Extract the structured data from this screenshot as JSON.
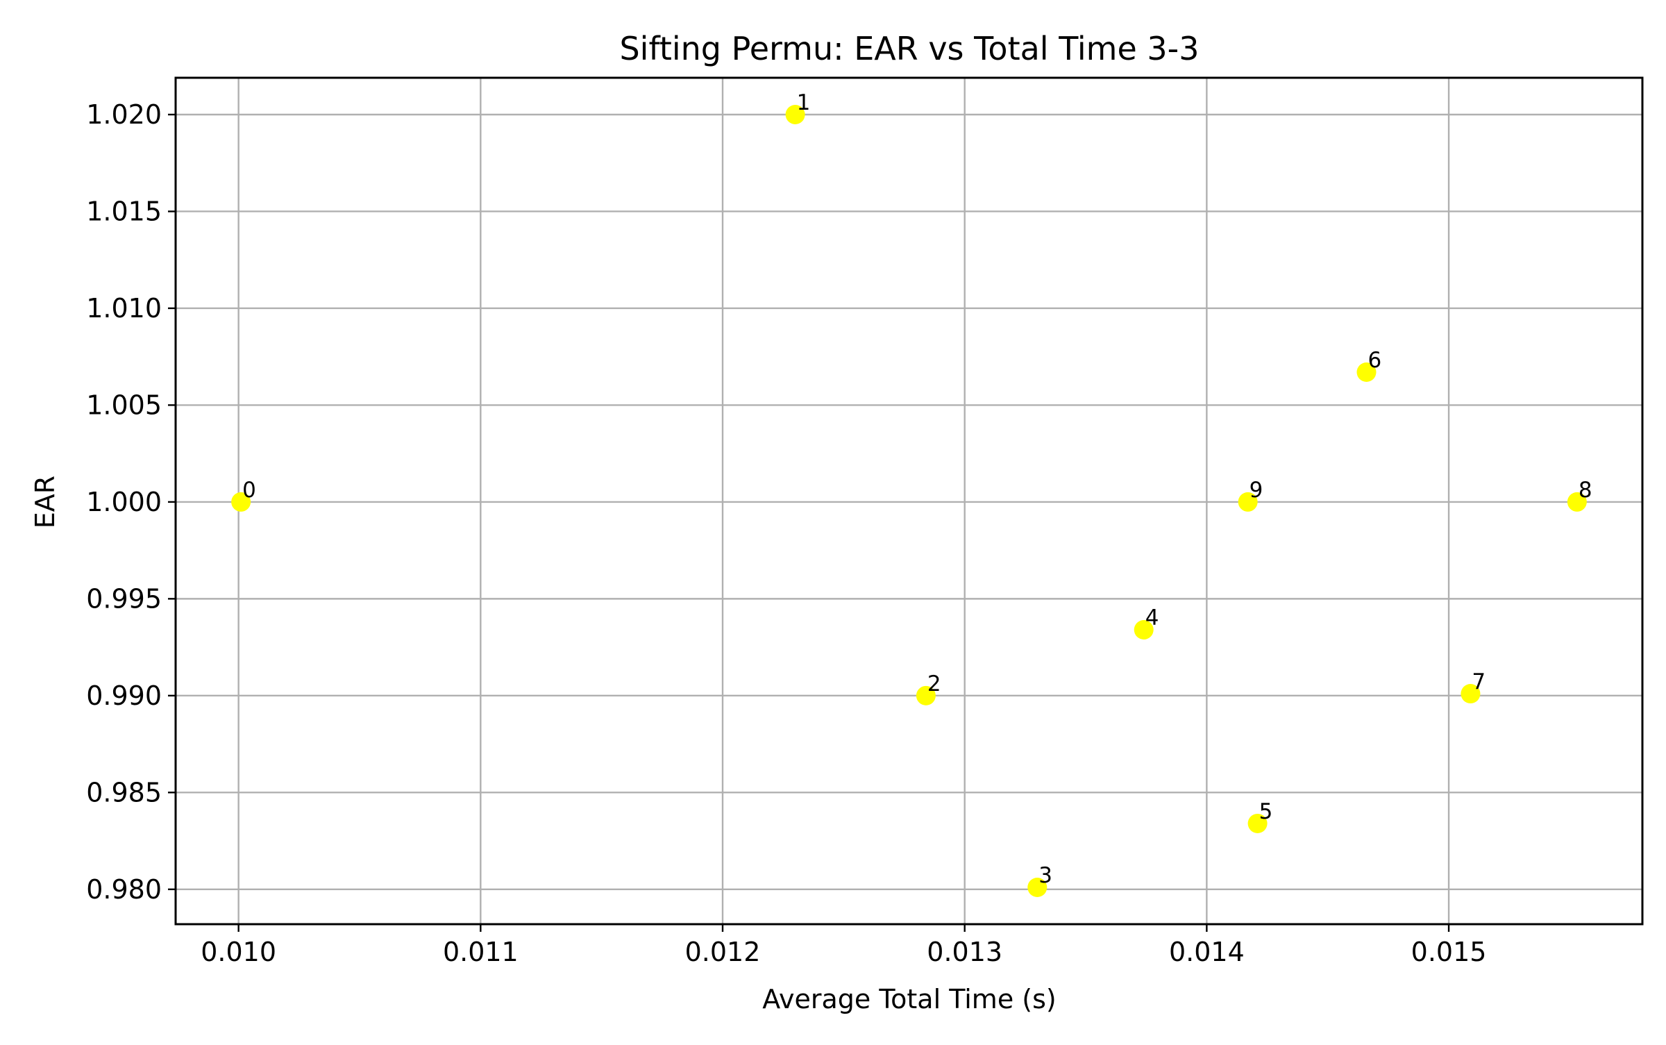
{
  "chart_data": {
    "type": "scatter",
    "title": "Sifting Permu: EAR vs Total Time 3-3",
    "xlabel": "Average Total Time (s)",
    "ylabel": "EAR",
    "xlim": [
      0.00974,
      0.0158
    ],
    "ylim": [
      0.9782,
      1.0219
    ],
    "x_ticks": [
      0.01,
      0.011,
      0.012,
      0.013,
      0.014,
      0.015
    ],
    "x_tick_labels": [
      "0.010",
      "0.011",
      "0.012",
      "0.013",
      "0.014",
      "0.015"
    ],
    "y_ticks": [
      0.98,
      0.985,
      0.99,
      0.995,
      1.0,
      1.005,
      1.01,
      1.015,
      1.02
    ],
    "y_tick_labels": [
      "0.980",
      "0.985",
      "0.990",
      "0.995",
      "1.000",
      "1.005",
      "1.010",
      "1.015",
      "1.020"
    ],
    "grid": true,
    "marker_color": "#ffff00",
    "points": [
      {
        "label": "0",
        "x": 0.01001,
        "y": 1.0
      },
      {
        "label": "1",
        "x": 0.0123,
        "y": 1.02
      },
      {
        "label": "2",
        "x": 0.01284,
        "y": 0.99
      },
      {
        "label": "3",
        "x": 0.0133,
        "y": 0.9801
      },
      {
        "label": "4",
        "x": 0.01374,
        "y": 0.9934
      },
      {
        "label": "5",
        "x": 0.01421,
        "y": 0.9834
      },
      {
        "label": "6",
        "x": 0.01466,
        "y": 1.0067
      },
      {
        "label": "7",
        "x": 0.01509,
        "y": 0.9901
      },
      {
        "label": "8",
        "x": 0.01553,
        "y": 1.0
      },
      {
        "label": "9",
        "x": 0.01417,
        "y": 1.0
      }
    ]
  }
}
